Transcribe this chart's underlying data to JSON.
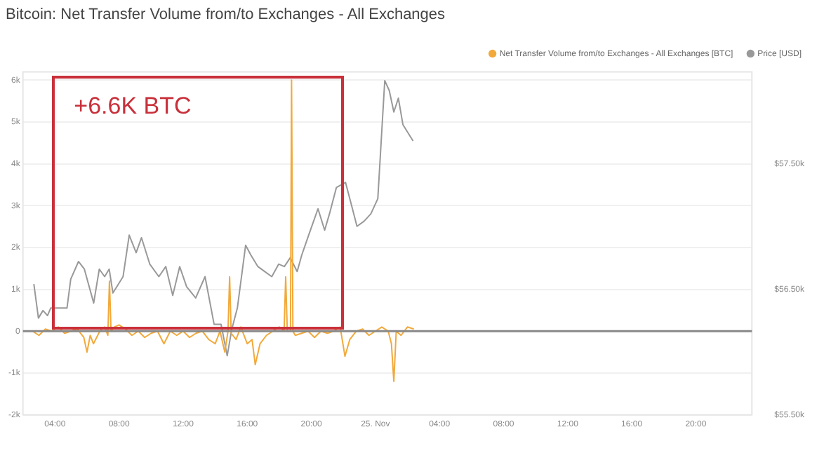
{
  "chart_data": {
    "type": "line",
    "title": "Bitcoin: Net Transfer Volume from/to Exchanges - All Exchanges",
    "annotations": [
      "+6.6K BTC"
    ],
    "legend": "top right",
    "grid": "y",
    "marker": "none",
    "line_style": "solid",
    "xlim": [
      "--11-24T02:00",
      "--11-25T23:30"
    ],
    "xticks": [
      {
        "value": "--11-24T04:00",
        "label": "04:00"
      },
      {
        "value": "--11-24T08:00",
        "label": "08:00"
      },
      {
        "value": "--11-24T12:00",
        "label": "12:00"
      },
      {
        "value": "--11-24T16:00",
        "label": "16:00"
      },
      {
        "value": "--11-24T20:00",
        "label": "20:00"
      },
      {
        "value": "--11-25T00:00",
        "label": "25. Nov"
      },
      {
        "value": "--11-25T04:00",
        "label": "04:00"
      },
      {
        "value": "--11-25T08:00",
        "label": "08:00"
      },
      {
        "value": "--11-25T12:00",
        "label": "12:00"
      },
      {
        "value": "--11-25T16:00",
        "label": "16:00"
      },
      {
        "value": "--11-25T20:00",
        "label": "20:00"
      }
    ],
    "ylim": [
      -2000,
      6200
    ],
    "yticks": [
      {
        "value": -2000,
        "label": "-2k"
      },
      {
        "value": -1000,
        "label": "-1k"
      },
      0,
      {
        "value": 1000,
        "label": "1k"
      },
      {
        "value": 2000,
        "label": "2k"
      },
      {
        "value": 3000,
        "label": "3k"
      },
      {
        "value": 4000,
        "label": "4k"
      },
      {
        "value": 5000,
        "label": "5k"
      },
      {
        "value": 6000,
        "label": "6k"
      }
    ],
    "y2lim": [
      55500,
      58230
    ],
    "y2ticks": [
      {
        "value": 55500,
        "label": "$55.50k"
      },
      {
        "value": 56500,
        "label": "$56.50k"
      },
      {
        "value": 57500,
        "label": "$57.50k"
      }
    ],
    "ref_lines": [
      {
        "axis": "y",
        "value": 0,
        "color": "#888888"
      }
    ],
    "series": [
      {
        "name": "Net Transfer Volume from/to Exchanges - All Exchanges [BTC]",
        "color": "#f2a93b",
        "x": [
          "--11-24T02:36",
          "--11-24T03:00",
          "--11-24T03:24",
          "--11-24T03:48",
          "--11-24T04:12",
          "--11-24T04:36",
          "--11-24T05:00",
          "--11-24T05:24",
          "--11-24T05:48",
          "--11-24T06:00",
          "--11-24T06:12",
          "--11-24T06:24",
          "--11-24T06:48",
          "--11-24T07:06",
          "--11-24T07:18",
          "--11-24T07:24",
          "--11-24T07:30",
          "--11-24T07:42",
          "--11-24T08:00",
          "--11-24T08:24",
          "--11-24T08:48",
          "--11-24T09:12",
          "--11-24T09:36",
          "--11-24T10:00",
          "--11-24T10:24",
          "--11-24T10:48",
          "--11-24T11:12",
          "--11-24T11:36",
          "--11-24T12:00",
          "--11-24T12:24",
          "--11-24T12:48",
          "--11-24T13:12",
          "--11-24T13:36",
          "--11-24T14:00",
          "--11-24T14:18",
          "--11-24T14:36",
          "--11-24T14:48",
          "--11-24T14:54",
          "--11-24T15:00",
          "--11-24T15:18",
          "--11-24T15:36",
          "--11-24T16:00",
          "--11-24T16:18",
          "--11-24T16:30",
          "--11-24T16:48",
          "--11-24T17:12",
          "--11-24T17:36",
          "--11-24T18:00",
          "--11-24T18:18",
          "--11-24T18:24",
          "--11-24T18:30",
          "--11-24T18:42",
          "--11-24T18:46",
          "--11-24T18:51",
          "--11-24T19:00",
          "--11-24T19:24",
          "--11-24T19:48",
          "--11-24T20:12",
          "--11-24T20:36",
          "--11-24T21:00",
          "--11-24T21:24",
          "--11-24T21:48",
          "--11-24T22:06",
          "--11-24T22:24",
          "--11-24T22:48",
          "--11-24T23:12",
          "--11-24T23:36",
          "--11-25T00:00",
          "--11-25T00:24",
          "--11-25T00:48",
          "--11-25T01:00",
          "--11-25T01:09",
          "--11-25T01:18",
          "--11-25T01:36",
          "--11-25T02:00",
          "--11-25T02:24"
        ],
        "values": [
          0,
          -100,
          50,
          0,
          100,
          -50,
          0,
          50,
          -150,
          -500,
          -100,
          -300,
          0,
          100,
          -100,
          1200,
          0,
          100,
          150,
          50,
          -100,
          0,
          -150,
          -50,
          0,
          -300,
          0,
          -100,
          0,
          -150,
          -50,
          0,
          -200,
          -300,
          0,
          -500,
          0,
          1300,
          -50,
          -200,
          100,
          -300,
          -200,
          -800,
          -300,
          -100,
          0,
          100,
          0,
          1300,
          0,
          0,
          6000,
          0,
          -100,
          -50,
          0,
          -150,
          0,
          -50,
          0,
          100,
          -600,
          -200,
          0,
          50,
          -100,
          0,
          100,
          0,
          -300,
          -1200,
          0,
          -100,
          100,
          50
        ]
      },
      {
        "name": "Price [USD]",
        "color": "#999999",
        "axis": "y2",
        "x": [
          "--11-24T02:41",
          "--11-24T02:58",
          "--11-24T03:15",
          "--11-24T03:32",
          "--11-24T03:44",
          "--11-24T04:45",
          "--11-24T04:59",
          "--11-24T05:28",
          "--11-24T05:50",
          "--11-24T06:25",
          "--11-24T06:46",
          "--11-24T07:06",
          "--11-24T07:23",
          "--11-24T07:37",
          "--11-24T08:15",
          "--11-24T08:38",
          "--11-24T09:04",
          "--11-24T09:24",
          "--11-24T09:55",
          "--11-24T10:29",
          "--11-24T10:55",
          "--11-24T11:21",
          "--11-24T11:47",
          "--11-24T12:13",
          "--11-24T12:47",
          "--11-24T13:22",
          "--11-24T13:56",
          "--11-24T14:22",
          "--11-24T14:45",
          "--11-24T15:02",
          "--11-24T15:23",
          "--11-24T15:54",
          "--11-24T16:14",
          "--11-24T16:40",
          "--11-24T17:06",
          "--11-24T17:32",
          "--11-24T17:58",
          "--11-24T18:19",
          "--11-24T18:41",
          "--11-24T19:07",
          "--11-24T19:24",
          "--11-24T19:50",
          "--11-24T20:25",
          "--11-24T20:50",
          "--11-24T21:08",
          "--11-24T21:34",
          "--11-24T22:08",
          "--11-24T22:34",
          "--11-24T22:51",
          "--11-24T23:17",
          "--11-24T23:43",
          "--11-25T00:09",
          "--11-25T00:35",
          "--11-25T00:52",
          "--11-25T01:09",
          "--11-25T01:26",
          "--11-25T01:43",
          "--11-25T02:21"
        ],
        "values": [
          56540,
          56270,
          56330,
          56290,
          56350,
          56350,
          56580,
          56720,
          56660,
          56390,
          56660,
          56600,
          56660,
          56470,
          56600,
          56930,
          56790,
          56910,
          56700,
          56600,
          56680,
          56450,
          56680,
          56520,
          56430,
          56600,
          56220,
          56220,
          55970,
          56180,
          56350,
          56850,
          56770,
          56680,
          56640,
          56600,
          56700,
          56680,
          56750,
          56640,
          56770,
          56930,
          57140,
          56970,
          57100,
          57310,
          57350,
          57140,
          57000,
          57040,
          57100,
          57220,
          58160,
          58080,
          57910,
          58020,
          57810,
          57680
        ]
      }
    ]
  }
}
